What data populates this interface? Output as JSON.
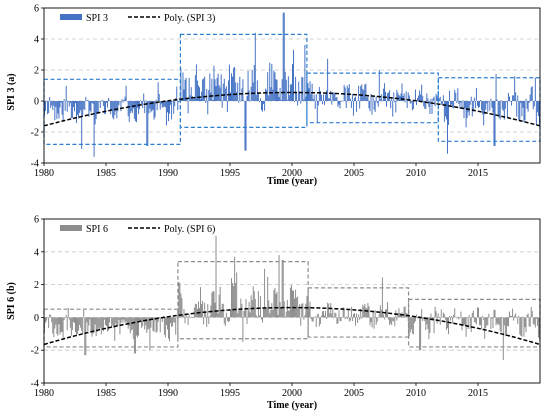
{
  "chart_data": [
    {
      "id": "a",
      "type": "bar",
      "ylabel": "SPI 3 (a)",
      "xlabel": "Time (year)",
      "xlim": [
        1980,
        2020
      ],
      "ylim": [
        -4,
        6
      ],
      "xticks": [
        1980,
        1985,
        1990,
        1995,
        2000,
        2005,
        2010,
        2015
      ],
      "yticks": [
        -4,
        -2,
        0,
        2,
        4,
        6
      ],
      "grid": "horizontal dashed",
      "legend_position": "top-left",
      "color": "#4472c4",
      "series": [
        {
          "name": "SPI 3",
          "kind": "monthly-bars",
          "seed": 11,
          "segments": [
            {
              "from": 1980,
              "to": 1991,
              "mean": -0.55,
              "amp": 0.75,
              "peak": 1.2
            },
            {
              "from": 1991,
              "to": 2001.2,
              "mean": 0.9,
              "amp": 1.2,
              "peak": 3.4
            },
            {
              "from": 2001.2,
              "to": 2011.8,
              "mean": 0.15,
              "amp": 0.8,
              "peak": 1.5
            },
            {
              "from": 2011.8,
              "to": 2020,
              "mean": -0.35,
              "amp": 0.85,
              "peak": 1.6
            }
          ],
          "extremes": [
            [
              1984.0,
              -3.6
            ],
            [
              1983.0,
              -3.1
            ],
            [
              1988.3,
              -2.9
            ],
            [
              1996.2,
              -3.2
            ],
            [
              1999.3,
              5.7
            ],
            [
              1997.0,
              4.4
            ],
            [
              2000.1,
              3.3
            ],
            [
              2012.5,
              -3.4
            ],
            [
              2016.3,
              -2.9
            ],
            [
              2019.6,
              1.5
            ]
          ]
        },
        {
          "name": "Poly. (SPI 3)",
          "kind": "trend",
          "vertex_x": 2000,
          "vertex_y": 0.55,
          "x_start": 1980,
          "y_start": -1.6,
          "color": "#000000"
        }
      ],
      "regimes": [
        {
          "x0": 1980,
          "x1": 1991,
          "y0": -2.8,
          "y1": 1.4
        },
        {
          "x0": 1991,
          "x1": 2001.2,
          "y0": -1.7,
          "y1": 4.3
        },
        {
          "x0": 2001.2,
          "x1": 2011.8,
          "y0": -1.4,
          "y1": 1.8
        },
        {
          "x0": 2011.8,
          "x1": 2020,
          "y0": -2.6,
          "y1": 1.5
        }
      ],
      "regime_color": "#2f7fd0"
    },
    {
      "id": "b",
      "type": "bar",
      "ylabel": "SPI 6 (b)",
      "xlabel": "Time (year)",
      "xlim": [
        1980,
        2020
      ],
      "ylim": [
        -4,
        6
      ],
      "xticks": [
        1980,
        1985,
        1990,
        1995,
        2000,
        2005,
        2010,
        2015
      ],
      "yticks": [
        -4,
        -2,
        0,
        2,
        4,
        6
      ],
      "grid": "horizontal dashed",
      "legend_position": "top-left",
      "color": "#8c8c8c",
      "series": [
        {
          "name": "SPI 6",
          "kind": "monthly-bars",
          "seed": 29,
          "segments": [
            {
              "from": 1980,
              "to": 1990.8,
              "mean": -0.65,
              "amp": 0.6,
              "peak": 0.5
            },
            {
              "from": 1990.8,
              "to": 2001.3,
              "mean": 0.8,
              "amp": 1.0,
              "peak": 3.3
            },
            {
              "from": 2001.3,
              "to": 2009.4,
              "mean": 0.2,
              "amp": 0.6,
              "peak": 1.7
            },
            {
              "from": 2009.4,
              "to": 2020,
              "mean": -0.3,
              "amp": 0.7,
              "peak": 1.1
            }
          ],
          "extremes": [
            [
              1983.3,
              -2.3
            ],
            [
              1987.3,
              -2.2
            ],
            [
              1988.5,
              -2.0
            ],
            [
              1998.9,
              3.8
            ],
            [
              1999.2,
              3.5
            ],
            [
              1996.0,
              -1.5
            ],
            [
              2017.0,
              -2.6
            ],
            [
              2010.3,
              -2.0
            ]
          ]
        },
        {
          "name": "Poly. (SPI 6)",
          "kind": "trend",
          "vertex_x": 2000,
          "vertex_y": 0.6,
          "x_start": 1980,
          "y_start": -1.65,
          "color": "#000000"
        }
      ],
      "regimes": [
        {
          "x0": 1980,
          "x1": 1990.8,
          "y0": -1.8,
          "y1": 0.5
        },
        {
          "x0": 1990.8,
          "x1": 2001.3,
          "y0": -1.3,
          "y1": 3.4
        },
        {
          "x0": 2001.3,
          "x1": 2009.4,
          "y0": -1.2,
          "y1": 1.8
        },
        {
          "x0": 2009.4,
          "x1": 2020,
          "y0": -1.8,
          "y1": 1.1
        }
      ],
      "regime_color": "#8c8c8c"
    }
  ]
}
